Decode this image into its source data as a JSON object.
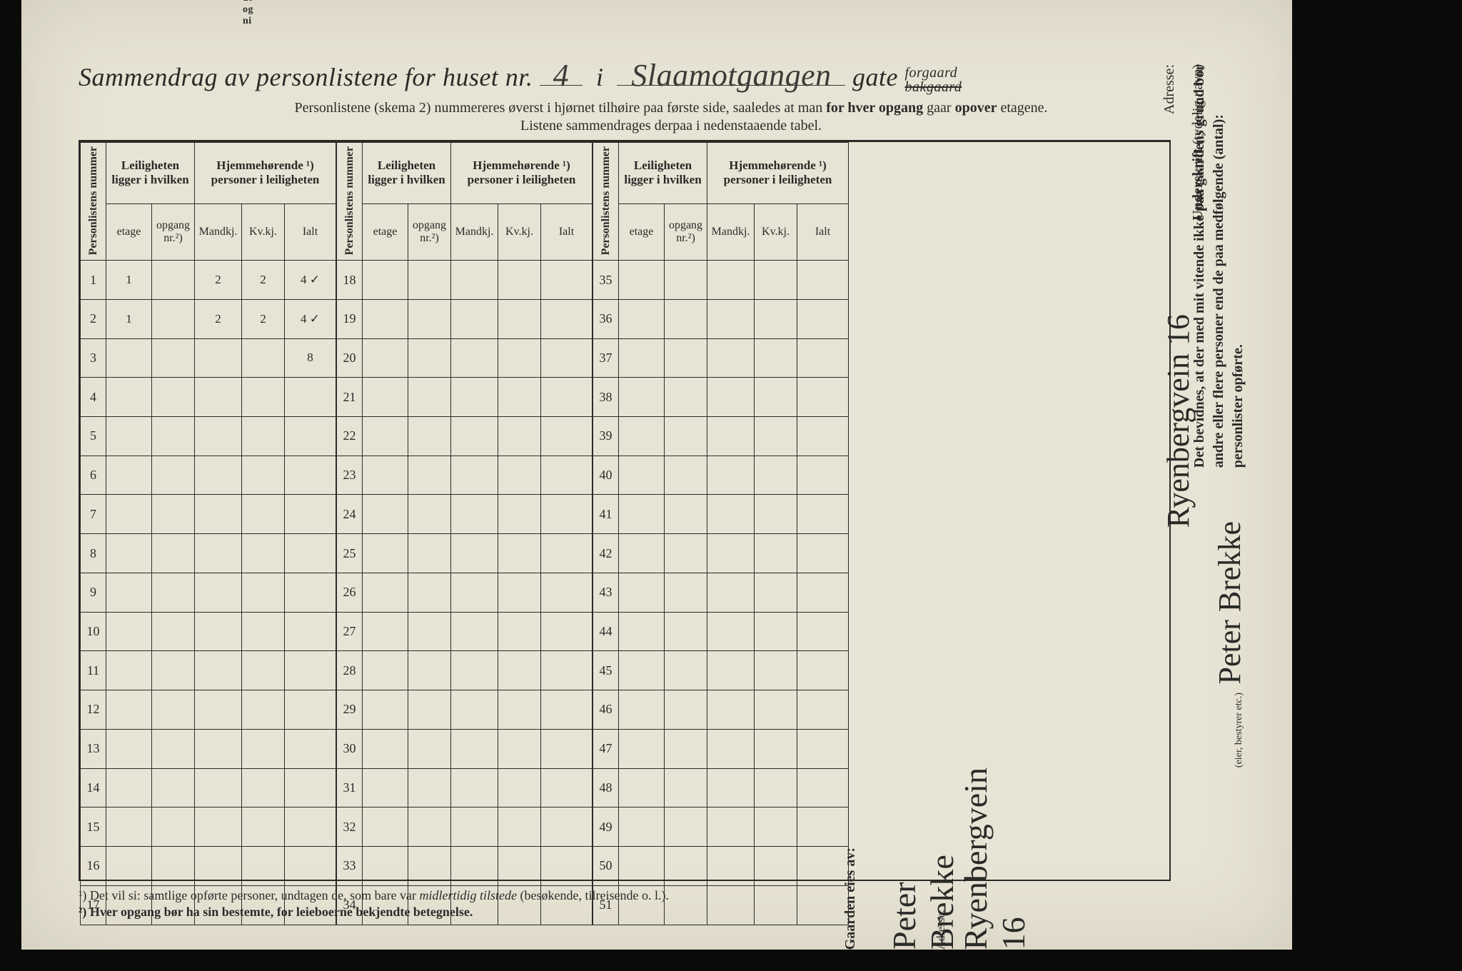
{
  "colors": {
    "page_bg": "#e8e4d5",
    "outer_bg": "#0a0a08",
    "ink": "#2a2a28",
    "handwriting": "#3a3a38"
  },
  "top_cutoff_lines": [
    "ut",
    "og",
    "ni"
  ],
  "title": {
    "prefix": "Sammendrag av personlistene for huset nr.",
    "house_nr": "4",
    "mid": "i",
    "street_hand": "Slaamotgangen",
    "gate": "gate",
    "forgaard": "forgaard",
    "bakgaard": "bakgaard"
  },
  "subtitle_line1_a": "Personlistene (skema 2) nummereres øverst i hjørnet tilhøire paa første side, saaledes at man ",
  "subtitle_line1_b": "for hver opgang",
  "subtitle_line1_c": " gaar ",
  "subtitle_line1_d": "opover",
  "subtitle_line1_e": " etagene.",
  "subtitle_line2": "Listene sammendrages derpaa i nedenstaaende tabel.",
  "col_headers": {
    "personlistens_nummer": "Personlistens\nnummer",
    "leiligheten": "Leiligheten\nligger i hvilken",
    "hjemme": "Hjemmehørende ¹)\npersoner i leiligheten",
    "etage": "etage",
    "opgang": "opgang\nnr.²)",
    "mandkj": "Mandkj.",
    "kvkj": "Kv.kj.",
    "ialt": "Ialt"
  },
  "table": {
    "row_ranges": [
      [
        1,
        17
      ],
      [
        18,
        34
      ],
      [
        35,
        51
      ]
    ],
    "data_rows": {
      "1": {
        "etage": "1",
        "opgang": "",
        "m": "2",
        "k": "2",
        "i": "4 ✓"
      },
      "2": {
        "etage": "1",
        "opgang": "",
        "m": "2",
        "k": "2",
        "i": "4 ✓"
      },
      "3": {
        "etage": "",
        "opgang": "",
        "m": "",
        "k": "",
        "i": "8"
      }
    }
  },
  "footnote1_a": "¹)   Det vil si: samtlige opførte personer, undtagen de, som bare var ",
  "footnote1_b": "midlertidig tilstede",
  "footnote1_c": " (besøkende, tilreisende o. l.).",
  "footnote2": "²)   Hver opgang bør ha sin bestemte, for leieboerne bekjendte betegnelse.",
  "right": {
    "attest_a": "Det bevidnes, at der med mit vitende ikke paa gaardens grund bor",
    "attest_b": "andre eller flere personer end de paa medfølgende (antal):",
    "attest_c": "personlister opførte.",
    "underskrift_label": "Underskrift",
    "underskrift_paren": "(tydelig navn)",
    "eier_label": "(eier, bestyrer etc.)",
    "adresse_label": "Adresse:",
    "signature": "Peter Brekke",
    "address": "Ryenbergvein 16"
  },
  "bottom": {
    "gaarden_label": "Gaarden eies av:",
    "owner": "Peter Brekke",
    "adresse_label": "Adresse:",
    "address": "Ryenbergvein 16"
  }
}
